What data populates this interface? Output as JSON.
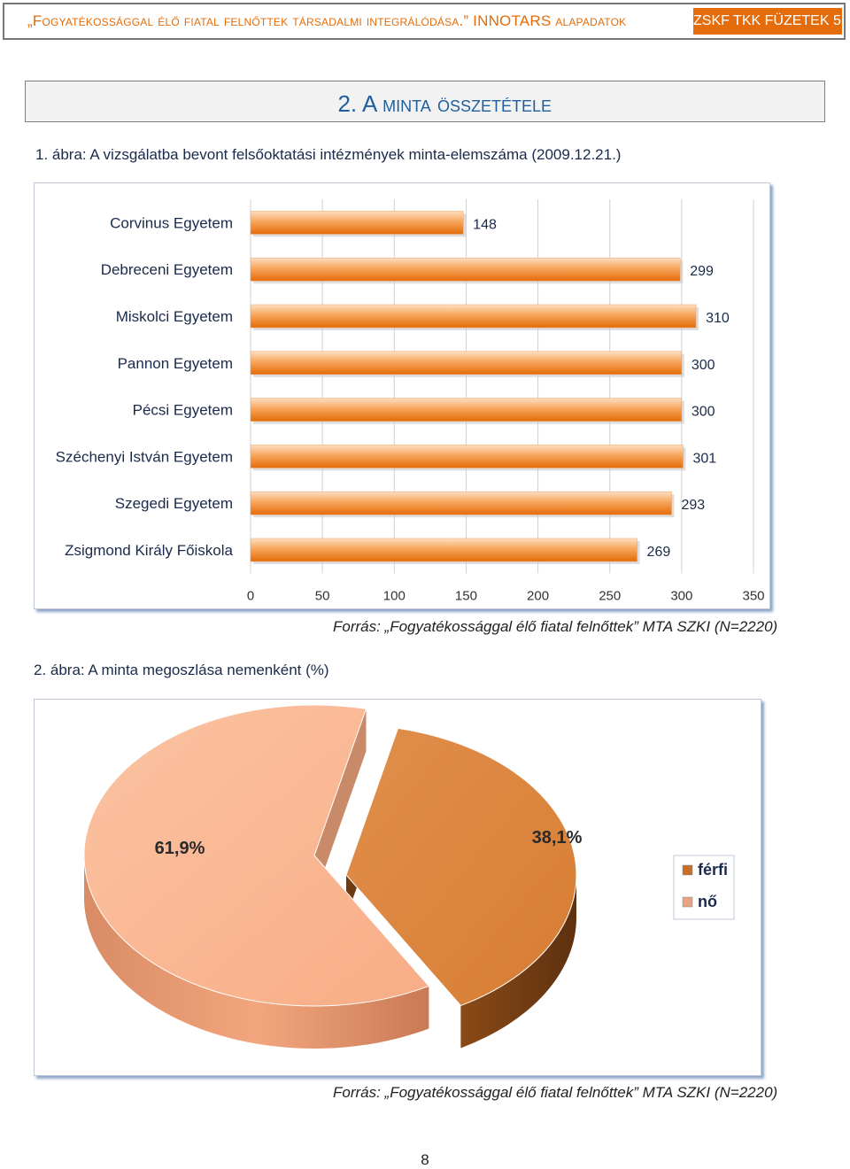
{
  "header": {
    "left_text": "„Fogyatékossággal élő fiatal felnőttek társadalmi integrálódása.” INNOTARS alapadatok",
    "right_text": "ZSKF TKK FÜZETEK 5."
  },
  "section": {
    "title": "2. A minta összetétele"
  },
  "figure1": {
    "caption": "1. ábra: A vizsgálatba bevont felsőoktatási intézmények minta-elemszáma (2009.12.21.)",
    "source": "Forrás: „Fogyatékossággal élő fiatal felnőttek” MTA SZKI (N=2220)"
  },
  "figure2": {
    "caption": "2. ábra: A minta megoszlása nemenként (%)",
    "source": "Forrás: „Fogyatékossággal élő fiatal felnőttek” MTA SZKI (N=2220)"
  },
  "page": {
    "number": "8"
  },
  "colors": {
    "bar_light": "#fbc18c",
    "bar_dark": "#e46c0a",
    "pie_female": "#fab896",
    "pie_male": "#dd873f",
    "accent": "#e46c0a"
  },
  "chart_data": [
    {
      "type": "bar",
      "orientation": "horizontal",
      "categories": [
        "Corvinus Egyetem",
        "Debreceni Egyetem",
        "Miskolci Egyetem",
        "Pannon Egyetem",
        "Pécsi Egyetem",
        "Széchenyi István Egyetem",
        "Szegedi Egyetem",
        "Zsigmond Király Főiskola"
      ],
      "values": [
        148,
        299,
        310,
        300,
        300,
        301,
        293,
        269
      ],
      "data_labels": [
        "148",
        "299",
        "310",
        "300",
        "300",
        "301",
        "293",
        "269"
      ],
      "xlim": [
        0,
        350
      ],
      "xticks": [
        "0",
        "50",
        "100",
        "150",
        "200",
        "250",
        "300",
        "350"
      ],
      "grid": true,
      "title": "",
      "xlabel": "",
      "ylabel": ""
    },
    {
      "type": "pie",
      "style": "3d",
      "labels": [
        "férfi",
        "nő"
      ],
      "values": [
        38.1,
        61.9
      ],
      "data_labels": [
        "38,1%",
        "61,9%"
      ],
      "legend": [
        "férfi",
        "nő"
      ],
      "legend_position": "right",
      "title": ""
    }
  ]
}
